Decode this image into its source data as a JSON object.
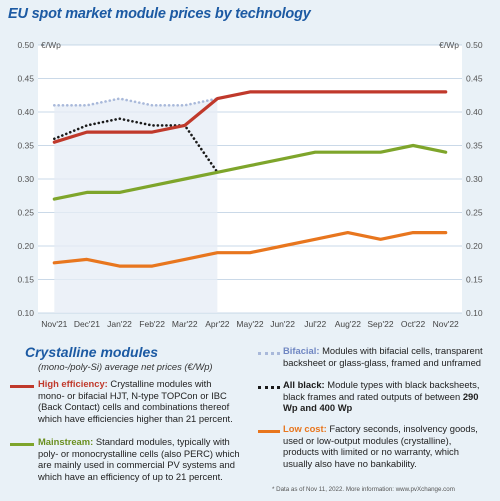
{
  "chart_data": {
    "type": "line",
    "title": "EU spot market module prices by technology",
    "y_unit_left": "€/Wp",
    "y_unit_right": "€/Wp",
    "ylim": [
      0.1,
      0.5
    ],
    "yticks": [
      "0.50",
      "0.45",
      "0.40",
      "0.35",
      "0.30",
      "0.25",
      "0.20",
      "0.15",
      "0.10"
    ],
    "categories": [
      "Nov'21",
      "Dec'21",
      "Jan'22",
      "Feb'22",
      "Mar'22",
      "Apr'22",
      "May'22",
      "Jun'22",
      "Jul'22",
      "Aug'22",
      "Sep'22",
      "Oct'22",
      "Nov'22"
    ],
    "grid": true,
    "series": [
      {
        "key": "bifacial",
        "color": "#a9b9da",
        "style": "dotted",
        "values": [
          0.41,
          0.41,
          0.42,
          0.41,
          0.41,
          0.42,
          null,
          null,
          null,
          null,
          null,
          null,
          null
        ]
      },
      {
        "key": "all_black",
        "color": "#1a1a1a",
        "style": "dotted",
        "values": [
          0.36,
          0.38,
          0.39,
          0.38,
          0.38,
          0.31,
          null,
          null,
          null,
          null,
          null,
          null,
          null
        ]
      },
      {
        "key": "high_efficiency",
        "color": "#c0392b",
        "style": "solid",
        "values": [
          0.355,
          0.37,
          0.37,
          0.37,
          0.38,
          0.42,
          0.43,
          0.43,
          0.43,
          0.43,
          0.43,
          0.43,
          0.43
        ]
      },
      {
        "key": "mainstream",
        "color": "#7ea52b",
        "style": "solid",
        "values": [
          0.27,
          0.28,
          0.28,
          0.29,
          0.3,
          0.31,
          0.32,
          0.33,
          0.34,
          0.34,
          0.34,
          0.35,
          0.34
        ]
      },
      {
        "key": "low_cost",
        "color": "#e8761e",
        "style": "solid",
        "values": [
          0.175,
          0.18,
          0.17,
          0.17,
          0.18,
          0.19,
          0.19,
          0.2,
          0.21,
          0.22,
          0.21,
          0.22,
          0.22
        ]
      }
    ]
  },
  "legend": {
    "title": "Crystalline modules",
    "subtitle": "(mono-/poly-Si) average net prices (€/Wp)",
    "items": {
      "high_efficiency": {
        "label": "High efficiency:",
        "text": "Crystalline modules with mono- or bifacial HJT, N-type TOPCon or IBC (Back Contact) cells and combinations thereof which have efficiencies higher than 21 percent."
      },
      "mainstream": {
        "label": "Mainstream:",
        "text": "Standard modules, typically with poly- or monocrystalline cells (also PERC) which are mainly used in commercial PV systems and which have an efficiency of up to 21 percent."
      },
      "bifacial": {
        "label": "Bifacial:",
        "text": "Modules with bifacial cells, transparent backsheet or glass-glass, framed and unframed"
      },
      "all_black": {
        "label": "All black:",
        "text": "Module types with black backsheets, black frames and rated outputs of between",
        "text_bold": "290 Wp and 400 Wp"
      },
      "low_cost": {
        "label": "Low cost:",
        "text": "Factory seconds, insolvency goods, used or low-output modules (crystalline), products with limited or no warranty, which usually also have no bankability."
      }
    }
  },
  "footnote": "* Data as of Nov 11, 2022. More information: www.pvXchange.com",
  "colors": {
    "title": "#1c5aa3",
    "background": "#e9f1f7",
    "plot": "#ffffff",
    "label_high": "#c0392b",
    "label_main": "#6a8f1f",
    "label_bif": "#6f86c2",
    "label_black": "#1a1a1a",
    "label_low": "#e8761e"
  }
}
